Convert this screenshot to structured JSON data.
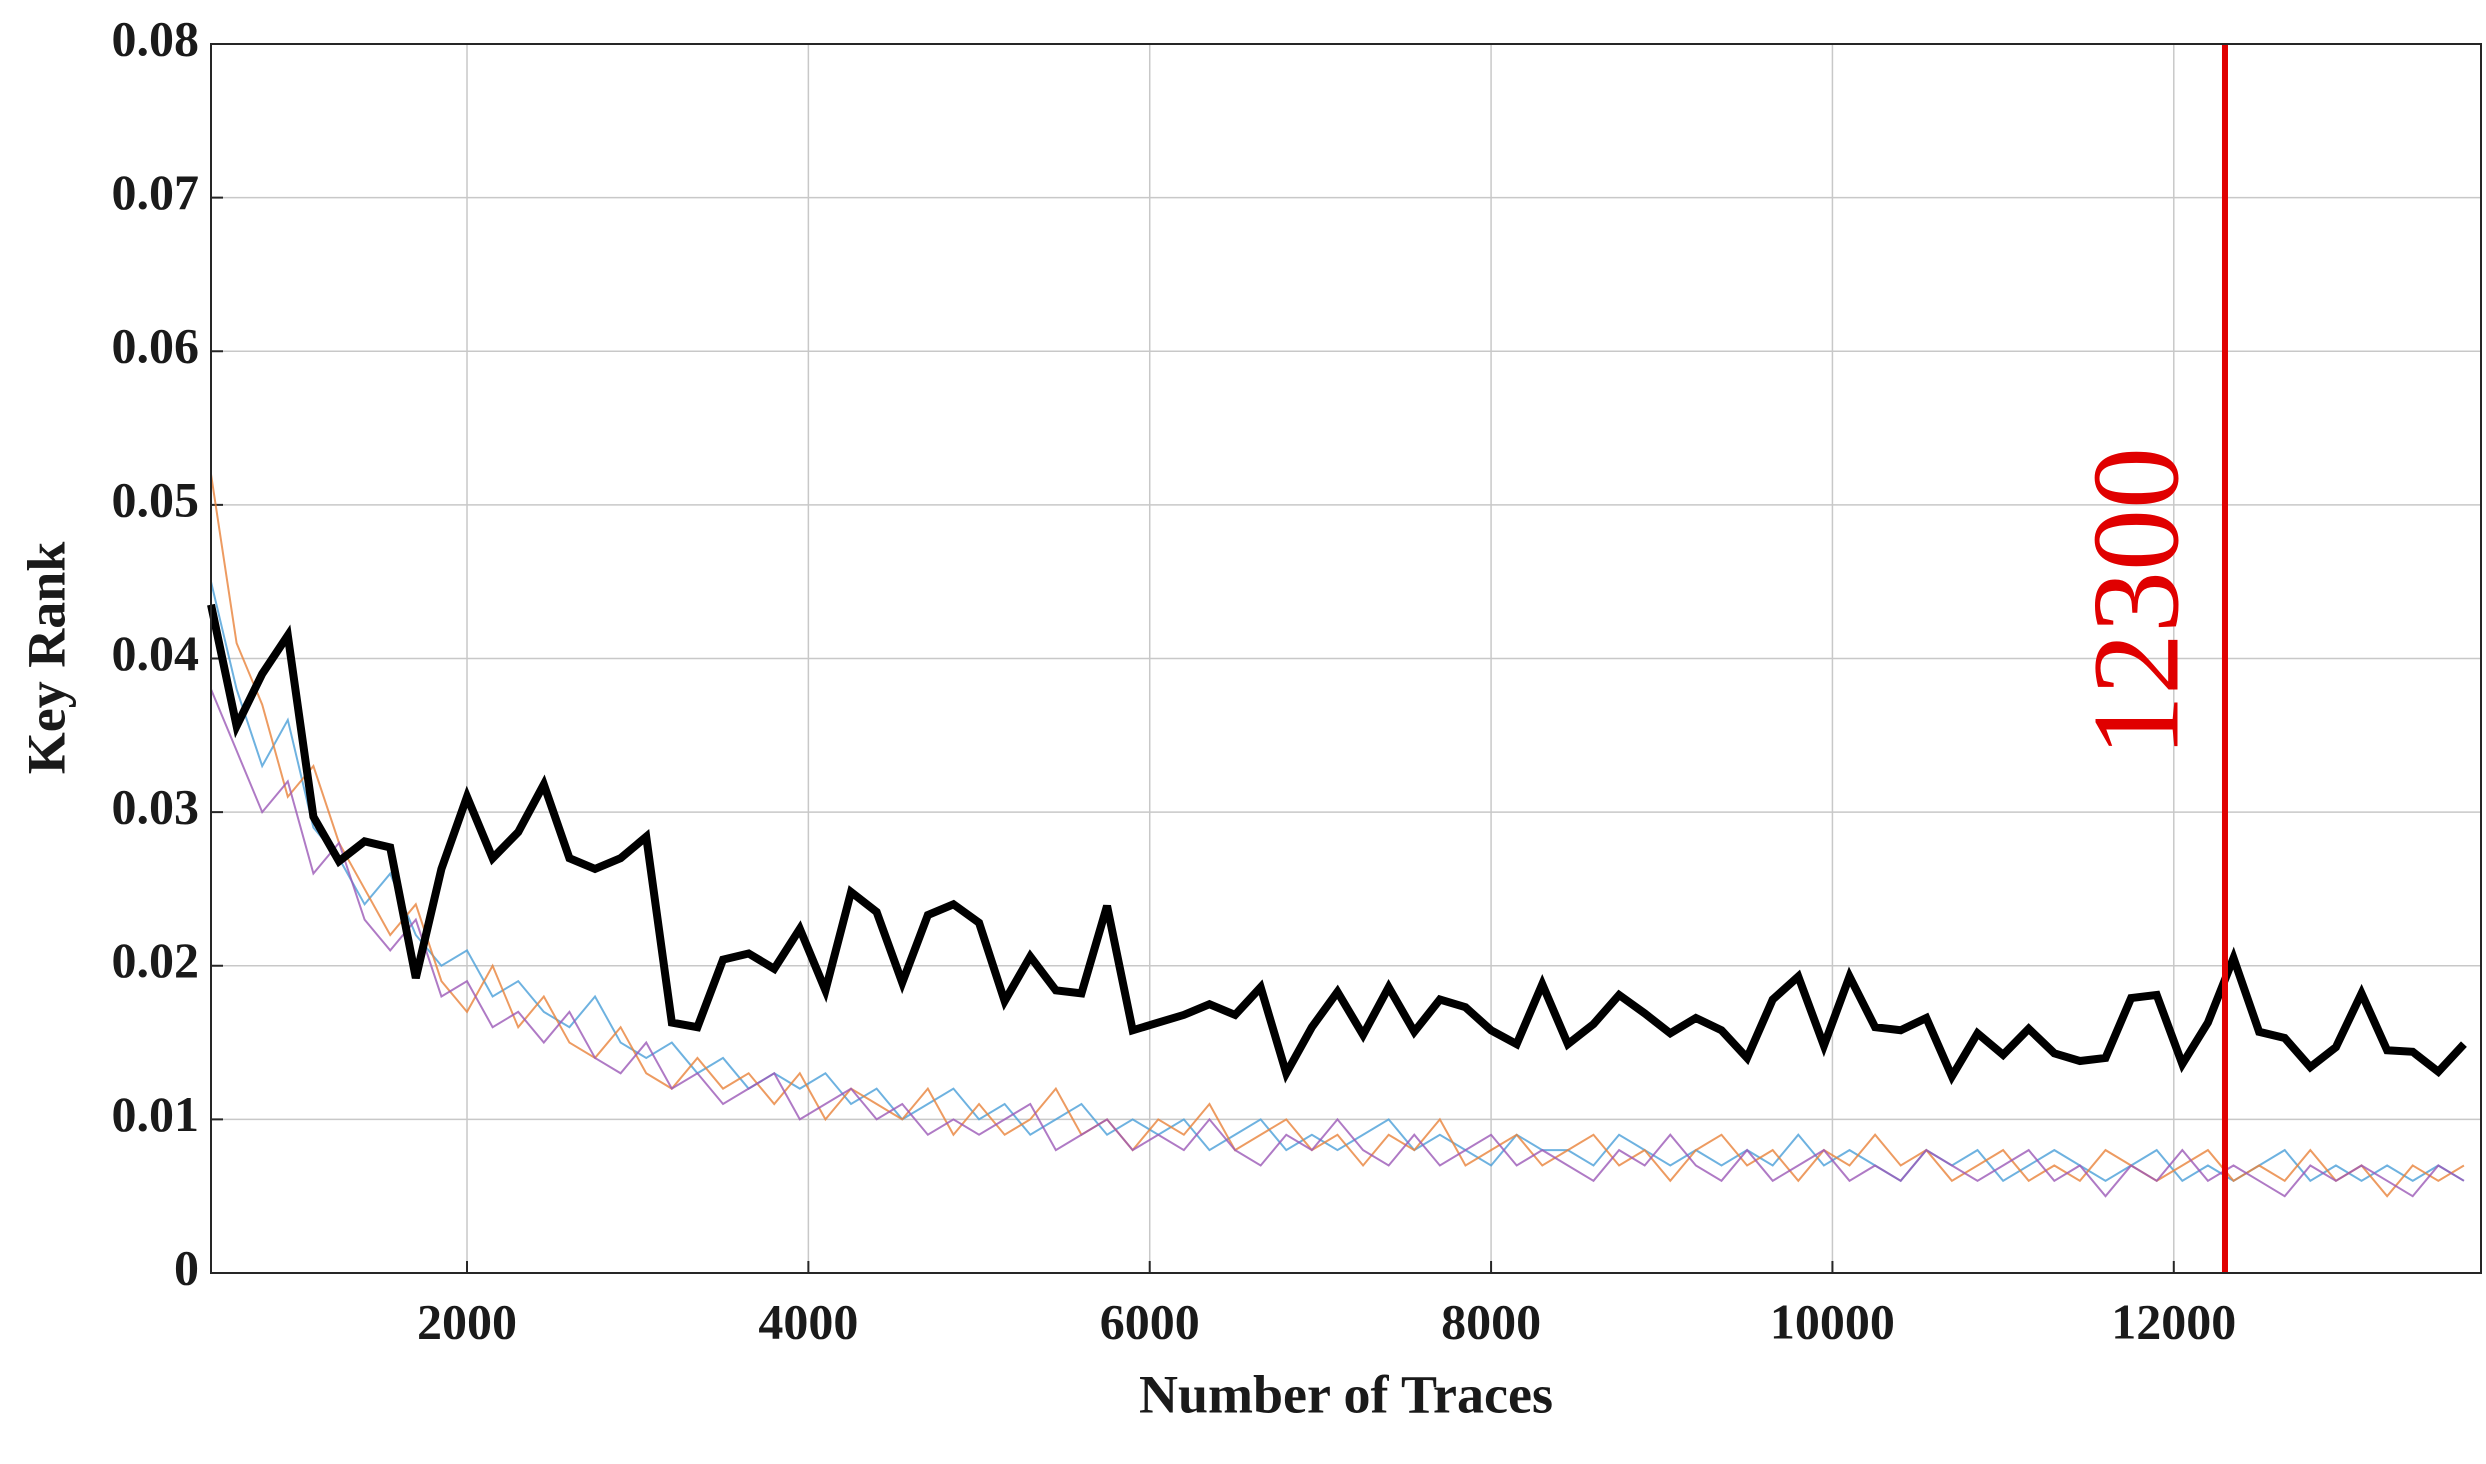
{
  "chart_data": {
    "type": "line",
    "xlabel": "Number of Traces",
    "ylabel": "Key Rank",
    "xlim": [
      500,
      13800
    ],
    "ylim": [
      0,
      0.08
    ],
    "xticks": [
      2000,
      4000,
      6000,
      8000,
      10000,
      12000
    ],
    "yticks": [
      0,
      0.01,
      0.02,
      0.03,
      0.04,
      0.05,
      0.06,
      0.07,
      0.08
    ],
    "grid": true,
    "x": [
      500,
      650,
      800,
      950,
      1100,
      1250,
      1400,
      1550,
      1700,
      1850,
      2000,
      2150,
      2300,
      2450,
      2600,
      2750,
      2900,
      3050,
      3200,
      3350,
      3500,
      3650,
      3800,
      3950,
      4100,
      4250,
      4400,
      4550,
      4700,
      4850,
      5000,
      5150,
      5300,
      5450,
      5600,
      5750,
      5900,
      6050,
      6200,
      6350,
      6500,
      6650,
      6800,
      6950,
      7100,
      7250,
      7400,
      7550,
      7700,
      7850,
      8000,
      8150,
      8300,
      8450,
      8600,
      8750,
      8900,
      9050,
      9200,
      9350,
      9500,
      9650,
      9800,
      9950,
      10100,
      10250,
      10400,
      10550,
      10700,
      10850,
      11000,
      11150,
      11300,
      11450,
      11600,
      11750,
      11900,
      12050,
      12200,
      12350,
      12500,
      12650,
      12800,
      12950,
      13100,
      13250,
      13400,
      13550,
      13700
    ],
    "series": [
      {
        "color": "#4a9fd8",
        "values": [
          0.045,
          0.038,
          0.033,
          0.036,
          0.029,
          0.027,
          0.024,
          0.026,
          0.022,
          0.02,
          0.021,
          0.018,
          0.019,
          0.017,
          0.016,
          0.018,
          0.015,
          0.014,
          0.015,
          0.013,
          0.014,
          0.012,
          0.013,
          0.012,
          0.013,
          0.011,
          0.012,
          0.01,
          0.011,
          0.012,
          0.01,
          0.011,
          0.009,
          0.01,
          0.011,
          0.009,
          0.01,
          0.009,
          0.01,
          0.008,
          0.009,
          0.01,
          0.008,
          0.009,
          0.008,
          0.009,
          0.01,
          0.008,
          0.009,
          0.008,
          0.007,
          0.009,
          0.008,
          0.008,
          0.007,
          0.009,
          0.008,
          0.007,
          0.008,
          0.007,
          0.008,
          0.007,
          0.009,
          0.007,
          0.008,
          0.007,
          0.006,
          0.008,
          0.007,
          0.008,
          0.006,
          0.007,
          0.008,
          0.007,
          0.006,
          0.007,
          0.008,
          0.006,
          0.007,
          0.006,
          0.007,
          0.008,
          0.006,
          0.007,
          0.006,
          0.007,
          0.006,
          0.007,
          0.006
        ]
      },
      {
        "color": "#e8823a",
        "values": [
          0.052,
          0.041,
          0.037,
          0.031,
          0.033,
          0.028,
          0.025,
          0.022,
          0.024,
          0.019,
          0.017,
          0.02,
          0.016,
          0.018,
          0.015,
          0.014,
          0.016,
          0.013,
          0.012,
          0.014,
          0.012,
          0.013,
          0.011,
          0.013,
          0.01,
          0.012,
          0.011,
          0.01,
          0.012,
          0.009,
          0.011,
          0.009,
          0.01,
          0.012,
          0.009,
          0.01,
          0.008,
          0.01,
          0.009,
          0.011,
          0.008,
          0.009,
          0.01,
          0.008,
          0.009,
          0.007,
          0.009,
          0.008,
          0.01,
          0.007,
          0.008,
          0.009,
          0.007,
          0.008,
          0.009,
          0.007,
          0.008,
          0.006,
          0.008,
          0.009,
          0.007,
          0.008,
          0.006,
          0.008,
          0.007,
          0.009,
          0.007,
          0.008,
          0.006,
          0.007,
          0.008,
          0.006,
          0.007,
          0.006,
          0.008,
          0.007,
          0.006,
          0.007,
          0.008,
          0.006,
          0.007,
          0.006,
          0.008,
          0.006,
          0.007,
          0.005,
          0.007,
          0.006,
          0.007
        ]
      },
      {
        "color": "#9b59b6",
        "values": [
          0.038,
          0.034,
          0.03,
          0.032,
          0.026,
          0.028,
          0.023,
          0.021,
          0.023,
          0.018,
          0.019,
          0.016,
          0.017,
          0.015,
          0.017,
          0.014,
          0.013,
          0.015,
          0.012,
          0.013,
          0.011,
          0.012,
          0.013,
          0.01,
          0.011,
          0.012,
          0.01,
          0.011,
          0.009,
          0.01,
          0.009,
          0.01,
          0.011,
          0.008,
          0.009,
          0.01,
          0.008,
          0.009,
          0.008,
          0.01,
          0.008,
          0.007,
          0.009,
          0.008,
          0.01,
          0.008,
          0.007,
          0.009,
          0.007,
          0.008,
          0.009,
          0.007,
          0.008,
          0.007,
          0.006,
          0.008,
          0.007,
          0.009,
          0.007,
          0.006,
          0.008,
          0.006,
          0.007,
          0.008,
          0.006,
          0.007,
          0.006,
          0.008,
          0.007,
          0.006,
          0.007,
          0.008,
          0.006,
          0.007,
          0.005,
          0.007,
          0.006,
          0.008,
          0.006,
          0.007,
          0.006,
          0.005,
          0.007,
          0.006,
          0.007,
          0.006,
          0.005,
          0.007,
          0.006
        ]
      },
      {
        "color": "#000000",
        "values": [
          0.0435,
          0.0356,
          0.039,
          0.0415,
          0.0297,
          0.0268,
          0.0281,
          0.0277,
          0.0192,
          0.0263,
          0.031,
          0.027,
          0.0287,
          0.0318,
          0.027,
          0.0263,
          0.027,
          0.0284,
          0.0163,
          0.016,
          0.0204,
          0.0208,
          0.0198,
          0.0224,
          0.0184,
          0.0248,
          0.0235,
          0.0189,
          0.0233,
          0.024,
          0.0228,
          0.0177,
          0.0206,
          0.0184,
          0.0182,
          0.0239,
          0.0158,
          0.0163,
          0.0168,
          0.0175,
          0.0168,
          0.0186,
          0.013,
          0.016,
          0.0183,
          0.0155,
          0.0186,
          0.0157,
          0.0178,
          0.0173,
          0.0158,
          0.0149,
          0.0188,
          0.0149,
          0.0162,
          0.0181,
          0.0169,
          0.0156,
          0.0166,
          0.0158,
          0.014,
          0.0178,
          0.0193,
          0.0148,
          0.0193,
          0.016,
          0.0158,
          0.0166,
          0.0128,
          0.0156,
          0.0142,
          0.0159,
          0.0143,
          0.0138,
          0.014,
          0.0179,
          0.0181,
          0.0136,
          0.0163,
          0.0205,
          0.0157,
          0.0153,
          0.0134,
          0.0147,
          0.0182,
          0.0145,
          0.0144,
          0.0131,
          0.0149
        ]
      }
    ],
    "vline": {
      "value": 12300,
      "color": "#e00000"
    }
  }
}
